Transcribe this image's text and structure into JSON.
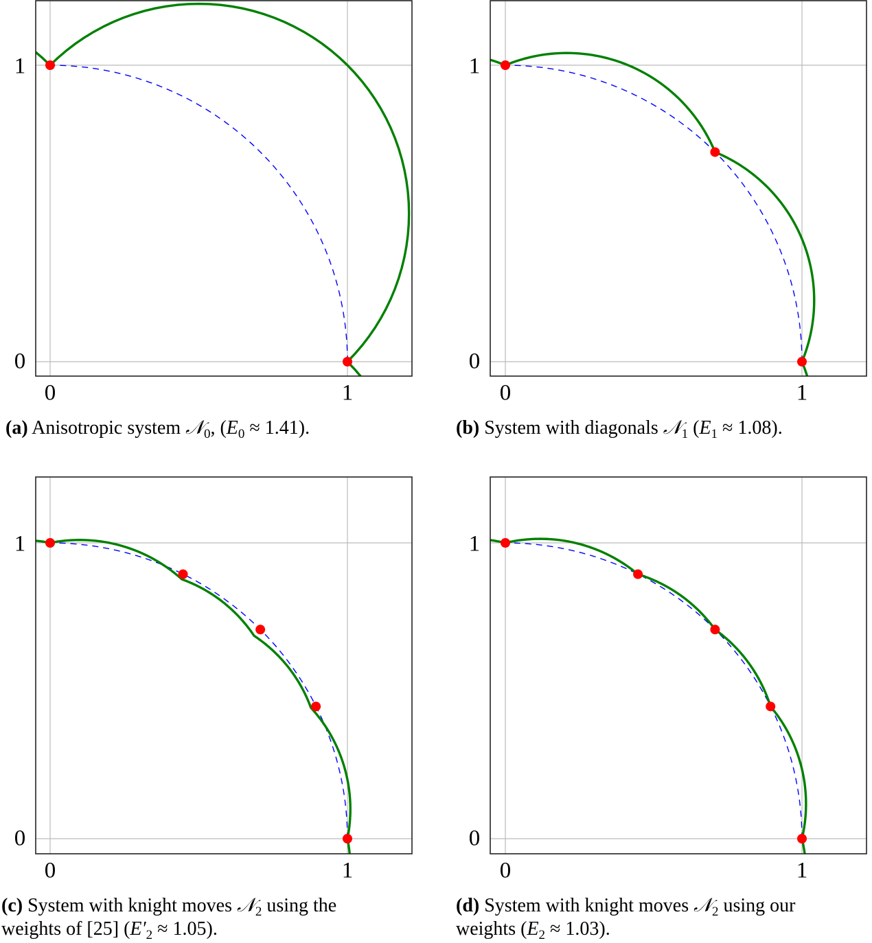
{
  "colors": {
    "approximation": "#008000",
    "unit_circle": "#0000ff",
    "nodes": "#ff0000",
    "grid": "#bbbbbb",
    "frame": "#222222"
  },
  "chart_data": [
    {
      "type": "line",
      "id": "a",
      "title": "",
      "caption_tag": "(a)",
      "caption_lines": [
        "Anisotropic system 𝒩₀, (E₀ ≈ 1.41)."
      ],
      "caption_text": "Anisotropic system",
      "caption_symbol": "𝒩",
      "caption_sub": "0",
      "caption_energy_sym": "E",
      "caption_energy_sub": "0",
      "caption_energy_val": "≈ 1.41).",
      "xlabel": "",
      "ylabel": "",
      "xlim": [
        -0.05,
        1.22
      ],
      "ylim": [
        -0.05,
        1.22
      ],
      "xticks": [
        0,
        1
      ],
      "yticks": [
        0,
        1
      ],
      "grid": true,
      "series": [
        {
          "name": "unit circle (dashed)",
          "style": "dashed",
          "function": "x^2+y^2=1, 0<=theta<=90deg"
        },
        {
          "name": "approximation (green)",
          "style": "solid",
          "kink_points": [
            [
              0,
              1
            ],
            [
              1,
              0
            ]
          ]
        },
        {
          "name": "nodes (red)",
          "style": "marker",
          "points": [
            [
              0,
              1
            ],
            [
              1,
              0
            ]
          ]
        }
      ],
      "energy": 1.41
    },
    {
      "type": "line",
      "id": "b",
      "caption_tag": "(b)",
      "caption_lines": [
        "System with diagonals 𝒩₁ (E₁ ≈ 1.08)."
      ],
      "xlim": [
        -0.05,
        1.22
      ],
      "ylim": [
        -0.05,
        1.22
      ],
      "xticks": [
        0,
        1
      ],
      "yticks": [
        0,
        1
      ],
      "grid": true,
      "series": [
        {
          "name": "unit circle (dashed)",
          "style": "dashed"
        },
        {
          "name": "approximation (green)",
          "style": "solid",
          "kink_points": [
            [
              0,
              1
            ],
            [
              0.707,
              0.707
            ],
            [
              1,
              0
            ]
          ]
        },
        {
          "name": "nodes (red)",
          "style": "marker",
          "points": [
            [
              0,
              1
            ],
            [
              0.707,
              0.707
            ],
            [
              1,
              0
            ]
          ]
        }
      ],
      "energy": 1.08
    },
    {
      "type": "line",
      "id": "c",
      "caption_tag": "(c)",
      "caption_lines": [
        "System with knight moves 𝒩₂ using the",
        "weights of [25] (E′₂ ≈ 1.05)."
      ],
      "xlim": [
        -0.05,
        1.22
      ],
      "ylim": [
        -0.05,
        1.22
      ],
      "xticks": [
        0,
        1
      ],
      "yticks": [
        0,
        1
      ],
      "grid": true,
      "series": [
        {
          "name": "unit circle (dashed)",
          "style": "dashed"
        },
        {
          "name": "approximation (green)",
          "style": "solid",
          "kink_points": [
            [
              0,
              1
            ],
            [
              0.443,
              0.877
            ],
            [
              0.686,
              0.686
            ],
            [
              0.877,
              0.443
            ],
            [
              1,
              0
            ]
          ]
        },
        {
          "name": "nodes (red)",
          "style": "marker",
          "points": [
            [
              0,
              1
            ],
            [
              0.447,
              0.894
            ],
            [
              0.707,
              0.707
            ],
            [
              0.894,
              0.447
            ],
            [
              1,
              0
            ]
          ]
        }
      ],
      "energy": 1.05
    },
    {
      "type": "line",
      "id": "d",
      "caption_tag": "(d)",
      "caption_lines": [
        "System with knight moves 𝒩₂ using our",
        "weights (E₂ ≈ 1.03)."
      ],
      "xlim": [
        -0.05,
        1.22
      ],
      "ylim": [
        -0.05,
        1.22
      ],
      "xticks": [
        0,
        1
      ],
      "yticks": [
        0,
        1
      ],
      "grid": true,
      "series": [
        {
          "name": "unit circle (dashed)",
          "style": "dashed"
        },
        {
          "name": "approximation (green)",
          "style": "solid",
          "kink_points": [
            [
              0,
              1
            ],
            [
              0.447,
              0.894
            ],
            [
              0.707,
              0.707
            ],
            [
              0.894,
              0.447
            ],
            [
              1,
              0
            ]
          ]
        },
        {
          "name": "nodes (red)",
          "style": "marker",
          "points": [
            [
              0,
              1
            ],
            [
              0.447,
              0.894
            ],
            [
              0.707,
              0.707
            ],
            [
              0.894,
              0.447
            ],
            [
              1,
              0
            ]
          ]
        }
      ],
      "energy": 1.03
    }
  ],
  "panels": {
    "a": {
      "tick_x0": "0",
      "tick_x1": "1",
      "tick_y0": "0",
      "tick_y1": "1",
      "tag": "(a)",
      "pre": " Anisotropic system ",
      "sym": "𝒩",
      "sub": "0",
      "mid": ", (",
      "esym": "E",
      "esub": "0",
      "post": " ≈ 1.41)."
    },
    "b": {
      "tick_x0": "0",
      "tick_x1": "1",
      "tick_y0": "0",
      "tick_y1": "1",
      "tag": "(b)",
      "pre": " System with diagonals ",
      "sym": "𝒩",
      "sub": "1",
      "mid": " (",
      "esym": "E",
      "esub": "1",
      "post": " ≈ 1.08)."
    },
    "c": {
      "tick_x0": "0",
      "tick_x1": "1",
      "tick_y0": "0",
      "tick_y1": "1",
      "tag": "(c)",
      "pre": " System with knight moves ",
      "sym": "𝒩",
      "sub": "2",
      "line1_end": " using the",
      "line2_pre": "weights of [25] (",
      "esym": "E′",
      "esub": "2",
      "post": " ≈ 1.05)."
    },
    "d": {
      "tick_x0": "0",
      "tick_x1": "1",
      "tick_y0": "0",
      "tick_y1": "1",
      "tag": "(d)",
      "pre": " System with knight moves ",
      "sym": "𝒩",
      "sub": "2",
      "line1_end": " using our",
      "line2_pre": "weights (",
      "esym": "E",
      "esub": "2",
      "post": " ≈ 1.03)."
    }
  }
}
